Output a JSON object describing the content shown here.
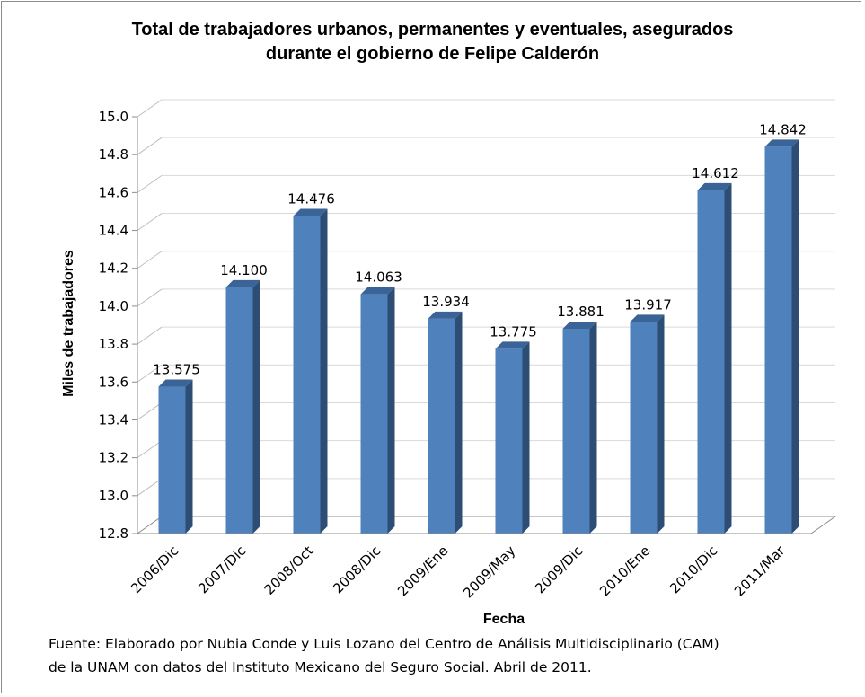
{
  "chart_data": {
    "type": "bar",
    "title_lines": [
      "Total de trabajadores urbanos, permanentes y eventuales, asegurados",
      "durante el gobierno de Felipe Calderón"
    ],
    "xlabel": "Fecha",
    "ylabel": "Miles de trabajadores",
    "categories": [
      "2006/Dic",
      "2007/Dic",
      "2008/Oct",
      "2008/Dic",
      "2009/Ene",
      "2009/May",
      "2009/Dic",
      "2010/Ene",
      "2010/Dic",
      "2011/Mar"
    ],
    "values": [
      13.575,
      14.1,
      14.476,
      14.063,
      13.934,
      13.775,
      13.881,
      13.917,
      14.612,
      14.842
    ],
    "value_labels": [
      "13.575",
      "14.100",
      "14.476",
      "14.063",
      "13.934",
      "13.775",
      "13.881",
      "13.917",
      "14.612",
      "14.842"
    ],
    "ylim": [
      12.8,
      15.0
    ],
    "yticks": [
      "12.8",
      "13.0",
      "13.2",
      "13.4",
      "13.6",
      "13.8",
      "14.0",
      "14.2",
      "14.4",
      "14.6",
      "14.8",
      "15.0"
    ],
    "grid": true,
    "legend": "none",
    "style": "3d-column",
    "colors": {
      "bar_front": "#4f81bd",
      "bar_side": "#2d4d74",
      "bar_top": "#3a6397",
      "grid": "#d9d9d9"
    }
  },
  "source_note": {
    "line1": "Fuente: Elaborado por Nubia Conde y Luis Lozano del Centro de Análisis Multidisciplinario (CAM)",
    "line2": "de la UNAM con datos del Instituto Mexicano del Seguro Social. Abril de 2011."
  }
}
